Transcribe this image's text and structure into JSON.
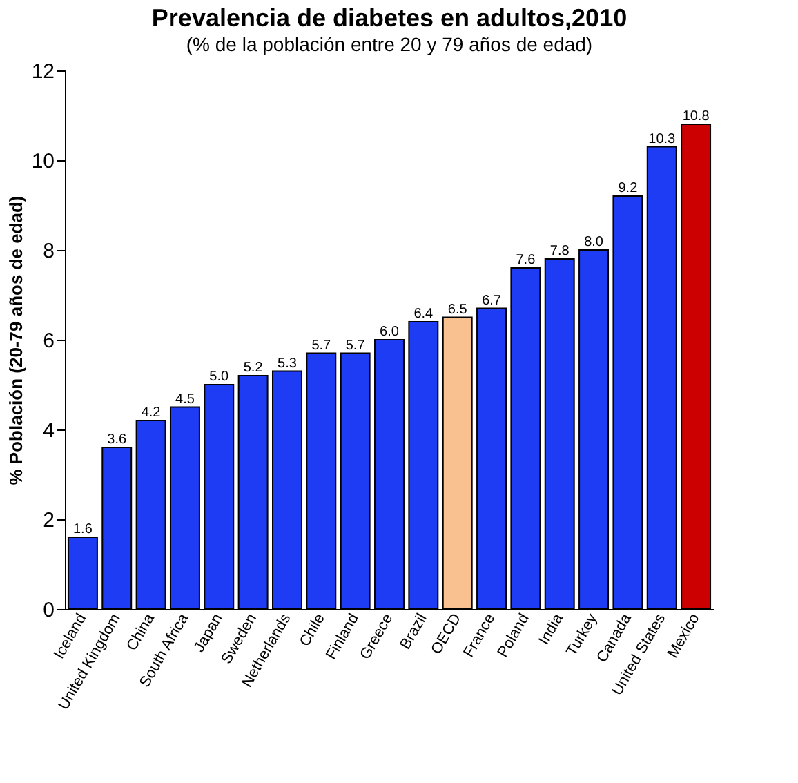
{
  "chart_data": {
    "type": "bar",
    "title": "Prevalencia de diabetes en adultos,2010",
    "subtitle": "(% de la población entre 20 y 79 años de edad)",
    "ylabel": "% Población (20-79 años de edad)",
    "categories": [
      "Iceland",
      "United Kingdom",
      "China",
      "South Africa",
      "Japan",
      "Sweden",
      "Netherlands",
      "Chile",
      "Finland",
      "Greece",
      "Brazil",
      "OECD",
      "France",
      "Poland",
      "India",
      "Turkey",
      "Canada",
      "United States",
      "Mexico"
    ],
    "values": [
      1.6,
      3.6,
      4.2,
      4.5,
      5.0,
      5.2,
      5.3,
      5.7,
      5.7,
      6.0,
      6.4,
      6.5,
      6.7,
      7.6,
      7.8,
      8.0,
      9.2,
      10.3,
      10.8
    ],
    "colors": [
      "#1f3cf5",
      "#1f3cf5",
      "#1f3cf5",
      "#1f3cf5",
      "#1f3cf5",
      "#1f3cf5",
      "#1f3cf5",
      "#1f3cf5",
      "#1f3cf5",
      "#1f3cf5",
      "#1f3cf5",
      "#f9c090",
      "#1f3cf5",
      "#1f3cf5",
      "#1f3cf5",
      "#1f3cf5",
      "#1f3cf5",
      "#1f3cf5",
      "#cc0000"
    ],
    "value_labels": [
      "1.6",
      "3.6",
      "4.2",
      "4.5",
      "5.0",
      "5.2",
      "5.3",
      "5.7",
      "5.7",
      "6.0",
      "6.4",
      "6.5",
      "6.7",
      "7.6",
      "7.8",
      "8.0",
      "9.2",
      "10.3",
      "10.8"
    ],
    "ylim": [
      0,
      12
    ],
    "yticks": [
      0,
      2,
      4,
      6,
      8,
      10,
      12
    ]
  }
}
